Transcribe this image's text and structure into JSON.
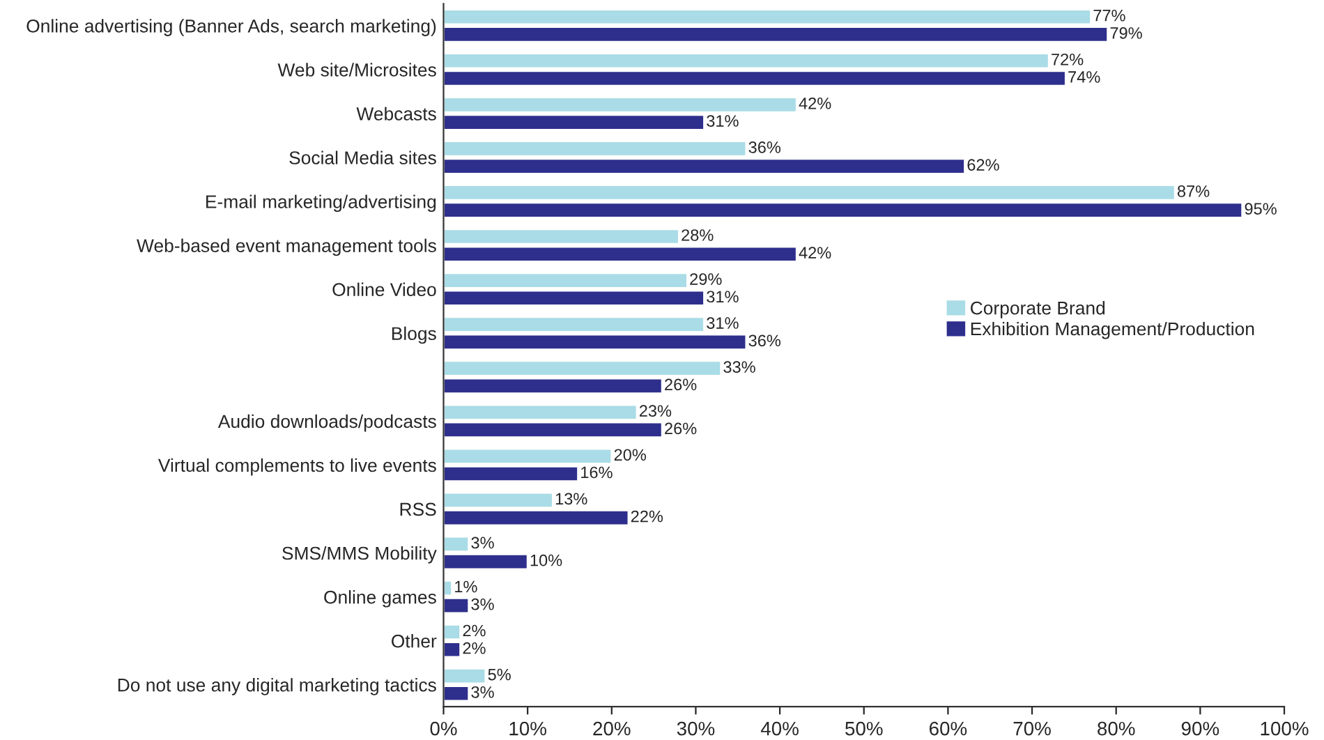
{
  "chart_data": {
    "type": "bar",
    "orientation": "horizontal",
    "categories": [
      "Online advertising (Banner Ads, search marketing)",
      "Web site/Microsites",
      "Webcasts",
      "Social Media sites",
      "E-mail marketing/advertising",
      "Web-based event management tools",
      "Online Video",
      "Blogs",
      null,
      "Audio downloads/podcasts",
      "Virtual complements to live events",
      "RSS",
      "SMS/MMS Mobility",
      "Online games",
      "Other",
      "Do not use any digital marketing tactics"
    ],
    "series": [
      {
        "name": "Corporate Brand",
        "color": "#a9dce6",
        "values": [
          77,
          72,
          42,
          36,
          87,
          28,
          29,
          31,
          33,
          23,
          20,
          13,
          3,
          1,
          2,
          5
        ],
        "value_labels": [
          "77%",
          "72%",
          "42%",
          "36%",
          "87%",
          "28%",
          "29%",
          "31%",
          "33%",
          "23%",
          "20%",
          "13%",
          "3%",
          "1%",
          "2%",
          "5%"
        ]
      },
      {
        "name": "Exhibition Management/Production",
        "color": "#2e2f8c",
        "values": [
          79,
          74,
          31,
          62,
          95,
          42,
          31,
          36,
          26,
          26,
          16,
          22,
          10,
          3,
          2,
          3
        ],
        "value_labels": [
          "79%",
          "74%",
          "31%",
          "62%",
          "95%",
          "42%",
          "31%",
          "36%",
          "26%",
          "26%",
          "16%",
          "22%",
          "10%",
          "3%",
          "2%",
          "3%"
        ]
      }
    ],
    "xlim": [
      0,
      100
    ],
    "xticks": [
      {
        "value": 0,
        "label": "0%"
      },
      {
        "value": 10,
        "label": "10%"
      },
      {
        "value": 20,
        "label": "20%"
      },
      {
        "value": 30,
        "label": "30%"
      },
      {
        "value": 40,
        "label": "40%"
      },
      {
        "value": 50,
        "label": "50%"
      },
      {
        "value": 60,
        "label": "60%"
      },
      {
        "value": 70,
        "label": "70%"
      },
      {
        "value": 80,
        "label": "80%"
      },
      {
        "value": 90,
        "label": "90%"
      },
      {
        "value": 100,
        "label": "100%"
      }
    ],
    "grid": false,
    "legend": "right"
  }
}
